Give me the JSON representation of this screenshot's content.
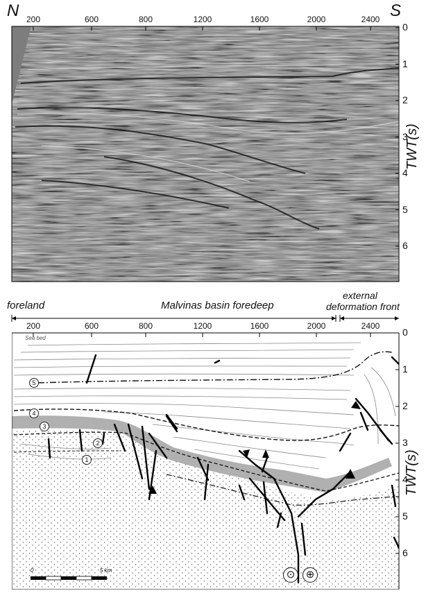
{
  "top_panel": {
    "north_label": "N",
    "south_label": "S",
    "x_ticks": [
      "200",
      "600",
      "800",
      "1200",
      "1600",
      "2000",
      "2400"
    ],
    "y_ticks": [
      "0",
      "1",
      "2",
      "3",
      "4",
      "5",
      "6"
    ],
    "y_axis_label": "TWT(s)"
  },
  "bottom_panel": {
    "zones": {
      "foreland": "foreland",
      "foredeep": "Malvinas basin foredeep",
      "front_line1": "external",
      "front_line2": "deformation front"
    },
    "x_ticks": [
      "200",
      "600",
      "800",
      "1200",
      "1600",
      "2000",
      "2400"
    ],
    "y_ticks": [
      "0",
      "1",
      "2",
      "3",
      "4",
      "5",
      "6"
    ],
    "y_axis_label": "TWT(s)",
    "sea_bed": "Sea bed",
    "horizons": [
      "1",
      "2",
      "3",
      "4",
      "5"
    ],
    "scale_start": "0",
    "scale_end": "5 km",
    "strike_slip_symbols": [
      "⊙",
      "⊕"
    ]
  }
}
